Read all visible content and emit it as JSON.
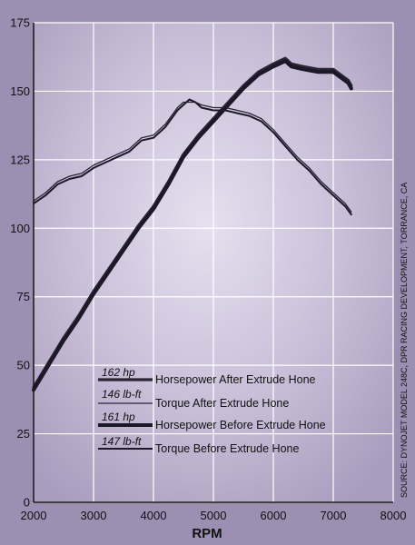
{
  "chart_data": {
    "type": "line",
    "title": "",
    "xlabel": "RPM",
    "ylabel": "",
    "xlim": [
      2000,
      8000
    ],
    "ylim": [
      0,
      175
    ],
    "xticks": [
      2000,
      3000,
      4000,
      5000,
      6000,
      7000,
      8000
    ],
    "yticks": [
      0,
      25,
      50,
      75,
      100,
      125,
      150,
      175
    ],
    "grid": true,
    "legend_position": "bottom-left",
    "series": [
      {
        "name": "Horsepower After Extrude Hone",
        "value_label": "162 hp",
        "color": "#2a2436",
        "x": [
          2000,
          2250,
          2500,
          2750,
          3000,
          3250,
          3500,
          3750,
          4000,
          4250,
          4500,
          4750,
          5000,
          5250,
          5500,
          5750,
          6000,
          6100,
          6200,
          6300,
          6500,
          6750,
          7000,
          7250,
          7300
        ],
        "y": [
          42,
          51,
          60,
          68,
          77,
          85,
          93,
          101,
          108,
          117,
          127,
          134,
          140,
          146,
          152,
          157,
          160,
          161,
          162,
          160,
          159,
          158,
          158,
          154,
          152
        ]
      },
      {
        "name": "Torque After Extrude Hone",
        "value_label": "146 lb-ft",
        "color": "#2a2436",
        "x": [
          2000,
          2200,
          2400,
          2600,
          2800,
          3000,
          3200,
          3400,
          3600,
          3800,
          4000,
          4200,
          4400,
          4500,
          4600,
          4700,
          4800,
          5000,
          5200,
          5400,
          5600,
          5800,
          6000,
          6200,
          6400,
          6600,
          6800,
          7000,
          7200,
          7300
        ],
        "y": [
          110,
          113,
          117,
          119,
          120,
          123,
          125,
          127,
          129,
          133,
          134,
          138,
          144,
          146,
          146,
          146,
          145,
          144,
          144,
          143,
          142,
          140,
          136,
          131,
          126,
          122,
          117,
          113,
          109,
          106
        ]
      },
      {
        "name": "Horsepower Before Extrude Hone",
        "value_label": "161 hp",
        "color": "#1c1828",
        "x": [
          2000,
          2250,
          2500,
          2750,
          3000,
          3250,
          3500,
          3750,
          4000,
          4250,
          4500,
          4750,
          5000,
          5250,
          5500,
          5750,
          6000,
          6100,
          6200,
          6300,
          6500,
          6750,
          7000,
          7250,
          7300
        ],
        "y": [
          41,
          50,
          59,
          67,
          76,
          84,
          92,
          100,
          107,
          116,
          126,
          133,
          139,
          145,
          151,
          156,
          159,
          160,
          161,
          159,
          158,
          157,
          157,
          153,
          151
        ]
      },
      {
        "name": "Torque Before Extrude Hone",
        "value_label": "147 lb-ft",
        "color": "#1c1828",
        "x": [
          2000,
          2200,
          2400,
          2600,
          2800,
          3000,
          3200,
          3400,
          3600,
          3800,
          4000,
          4200,
          4400,
          4500,
          4600,
          4700,
          4800,
          5000,
          5200,
          5400,
          5600,
          5800,
          6000,
          6200,
          6400,
          6600,
          6800,
          7000,
          7200,
          7300
        ],
        "y": [
          109,
          112,
          116,
          118,
          119,
          122,
          124,
          126,
          128,
          132,
          133,
          137,
          143,
          145,
          147,
          146,
          144,
          143,
          143,
          142,
          141,
          139,
          135,
          130,
          125,
          121,
          116,
          112,
          108,
          105
        ]
      }
    ],
    "source_note": "SOURCE: DYNOJET MODEL 248C, DPR RACING DEVELOPMENT, TORRANCE, CA"
  },
  "colors": {
    "background": "#9d8fb2",
    "plot_background": "#c4b8d2",
    "plot_glow": "#e4dded",
    "grid": "#ffffff",
    "axis": "#1a1a1a"
  }
}
